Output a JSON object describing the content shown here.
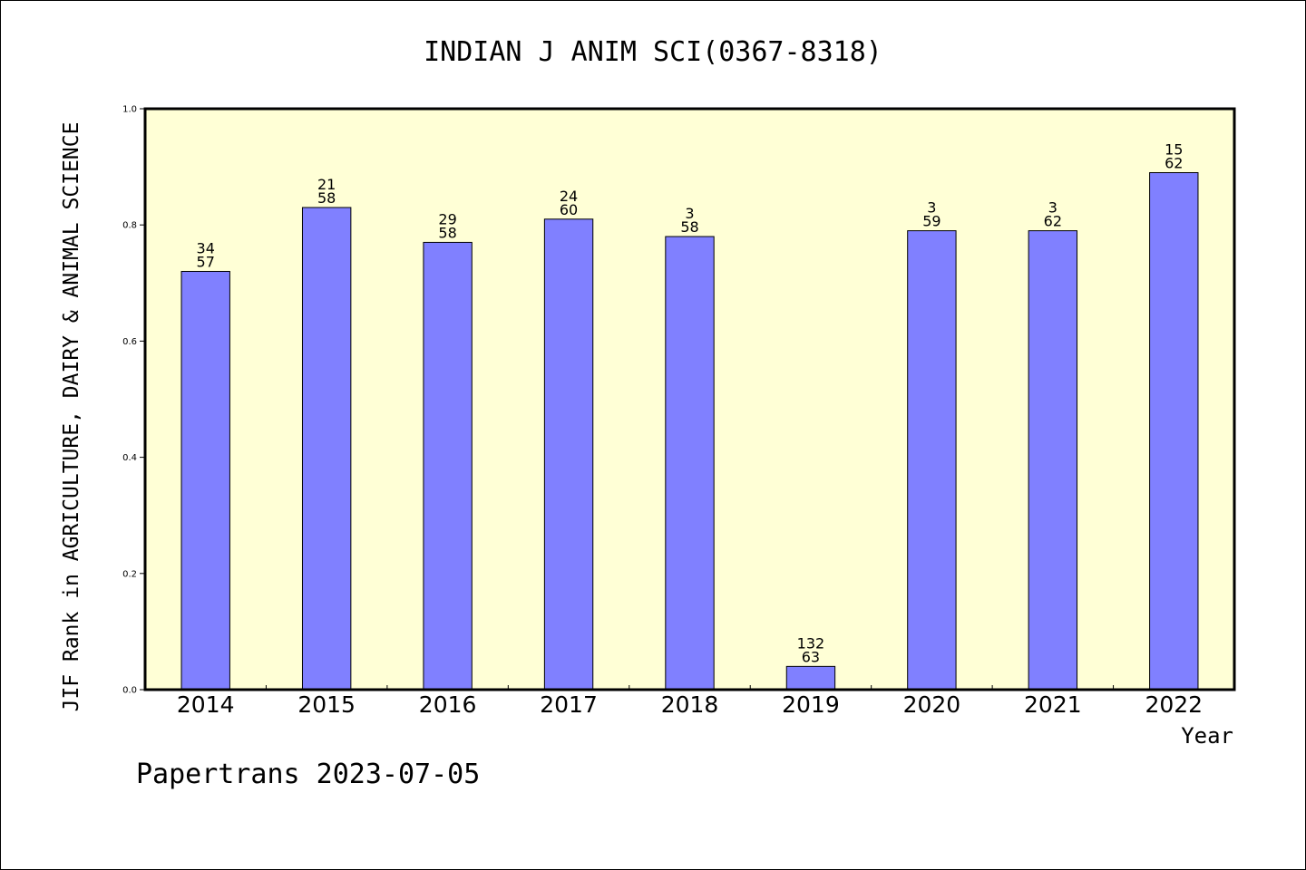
{
  "title": "INDIAN J ANIM SCI(0367-8318)",
  "footer": "Papertrans 2023-07-05",
  "colors": {
    "page_background": "#ffffff",
    "plot_background": "#ffffd6",
    "bar_fill": "#8080ff",
    "bar_stroke": "#000000",
    "frame": "#000000"
  },
  "chart_data": {
    "type": "bar",
    "title": "INDIAN J ANIM SCI(0367-8318)",
    "xlabel": "Year",
    "ylabel": "JIF Rank in AGRICULTURE, DAIRY & ANIMAL SCIENCE",
    "categories": [
      "2014",
      "2015",
      "2016",
      "2017",
      "2018",
      "2019",
      "2020",
      "2021",
      "2022"
    ],
    "values": [
      0.72,
      0.83,
      0.77,
      0.81,
      0.78,
      0.04,
      0.79,
      0.79,
      0.89
    ],
    "bar_labels": [
      {
        "rank": "34",
        "total": "57"
      },
      {
        "rank": "21",
        "total": "58"
      },
      {
        "rank": "29",
        "total": "58"
      },
      {
        "rank": "24",
        "total": "60"
      },
      {
        "rank": "3",
        "total": "58"
      },
      {
        "rank": "132",
        "total": "63"
      },
      {
        "rank": "3",
        "total": "59"
      },
      {
        "rank": "3",
        "total": "62"
      },
      {
        "rank": "15",
        "total": "62"
      }
    ],
    "ylim": [
      0,
      1
    ],
    "yticks": [
      0,
      0.2,
      0.4,
      0.6,
      0.8,
      1
    ],
    "ytick_labels": [
      "0.0",
      "0.2",
      "0.4",
      "0.6",
      "0.8",
      "1.0"
    ],
    "grid": false,
    "legend": "none"
  }
}
